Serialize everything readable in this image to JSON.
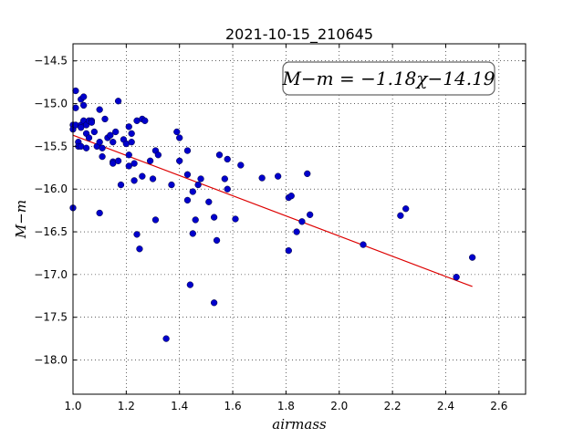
{
  "chart_data": {
    "type": "scatter",
    "title": "2021-10-15_210645",
    "xlabel": "airmass",
    "ylabel": "M−m",
    "xlim": [
      1.0,
      2.7
    ],
    "ylim": [
      -18.4,
      -14.3
    ],
    "y_inverted": true,
    "grid": true,
    "xticks": [
      "1.0",
      "1.2",
      "1.4",
      "1.6",
      "1.8",
      "2.0",
      "2.2",
      "2.4",
      "2.6"
    ],
    "yticks": [
      "−14.5",
      "−15.0",
      "−15.5",
      "−16.0",
      "−16.5",
      "−17.0",
      "−17.5",
      "−18.0"
    ],
    "annotation": "M−m = −1.18χ−14.19",
    "point_color": "#0000cc",
    "fit_color": "#dd0000",
    "fit": {
      "slope": -1.18,
      "intercept": -14.19,
      "x_range": [
        1.0,
        2.5
      ]
    },
    "points": [
      [
        1.0,
        -15.25
      ],
      [
        1.0,
        -15.3
      ],
      [
        1.0,
        -16.22
      ],
      [
        1.01,
        -15.25
      ],
      [
        1.01,
        -14.85
      ],
      [
        1.01,
        -15.05
      ],
      [
        1.02,
        -15.45
      ],
      [
        1.02,
        -15.5
      ],
      [
        1.03,
        -14.95
      ],
      [
        1.03,
        -15.25
      ],
      [
        1.03,
        -15.5
      ],
      [
        1.03,
        -15.28
      ],
      [
        1.04,
        -14.92
      ],
      [
        1.04,
        -15.2
      ],
      [
        1.04,
        -15.02
      ],
      [
        1.05,
        -15.25
      ],
      [
        1.05,
        -15.35
      ],
      [
        1.05,
        -15.52
      ],
      [
        1.06,
        -15.2
      ],
      [
        1.06,
        -15.4
      ],
      [
        1.07,
        -15.2
      ],
      [
        1.07,
        -15.22
      ],
      [
        1.08,
        -15.33
      ],
      [
        1.09,
        -15.5
      ],
      [
        1.1,
        -15.07
      ],
      [
        1.1,
        -15.45
      ],
      [
        1.1,
        -16.28
      ],
      [
        1.11,
        -15.52
      ],
      [
        1.11,
        -15.62
      ],
      [
        1.12,
        -15.18
      ],
      [
        1.13,
        -15.4
      ],
      [
        1.14,
        -15.37
      ],
      [
        1.15,
        -15.68
      ],
      [
        1.15,
        -15.7
      ],
      [
        1.15,
        -15.45
      ],
      [
        1.16,
        -15.33
      ],
      [
        1.17,
        -14.97
      ],
      [
        1.17,
        -15.67
      ],
      [
        1.18,
        -15.95
      ],
      [
        1.19,
        -15.42
      ],
      [
        1.2,
        -15.47
      ],
      [
        1.21,
        -15.27
      ],
      [
        1.21,
        -15.6
      ],
      [
        1.21,
        -15.73
      ],
      [
        1.22,
        -15.45
      ],
      [
        1.22,
        -15.35
      ],
      [
        1.23,
        -15.7
      ],
      [
        1.23,
        -15.9
      ],
      [
        1.24,
        -15.2
      ],
      [
        1.24,
        -16.53
      ],
      [
        1.25,
        -16.7
      ],
      [
        1.26,
        -15.18
      ],
      [
        1.26,
        -15.85
      ],
      [
        1.27,
        -15.2
      ],
      [
        1.29,
        -15.67
      ],
      [
        1.3,
        -15.88
      ],
      [
        1.31,
        -15.55
      ],
      [
        1.31,
        -16.36
      ],
      [
        1.32,
        -15.6
      ],
      [
        1.35,
        -17.75
      ],
      [
        1.37,
        -15.95
      ],
      [
        1.39,
        -15.33
      ],
      [
        1.4,
        -15.67
      ],
      [
        1.4,
        -15.4
      ],
      [
        1.43,
        -15.55
      ],
      [
        1.43,
        -15.83
      ],
      [
        1.43,
        -16.13
      ],
      [
        1.44,
        -17.12
      ],
      [
        1.45,
        -16.52
      ],
      [
        1.45,
        -16.03
      ],
      [
        1.46,
        -16.36
      ],
      [
        1.47,
        -15.95
      ],
      [
        1.48,
        -15.88
      ],
      [
        1.51,
        -16.15
      ],
      [
        1.53,
        -16.33
      ],
      [
        1.53,
        -17.33
      ],
      [
        1.54,
        -16.6
      ],
      [
        1.55,
        -15.6
      ],
      [
        1.57,
        -15.88
      ],
      [
        1.58,
        -16.0
      ],
      [
        1.58,
        -15.65
      ],
      [
        1.61,
        -16.35
      ],
      [
        1.63,
        -15.72
      ],
      [
        1.71,
        -15.87
      ],
      [
        1.77,
        -15.85
      ],
      [
        1.81,
        -16.1
      ],
      [
        1.81,
        -16.72
      ],
      [
        1.82,
        -16.08
      ],
      [
        1.84,
        -16.5
      ],
      [
        1.86,
        -16.38
      ],
      [
        1.88,
        -15.82
      ],
      [
        1.89,
        -16.3
      ],
      [
        2.09,
        -16.65
      ],
      [
        2.23,
        -16.31
      ],
      [
        2.25,
        -16.23
      ],
      [
        2.44,
        -17.03
      ],
      [
        2.5,
        -16.8
      ]
    ]
  }
}
